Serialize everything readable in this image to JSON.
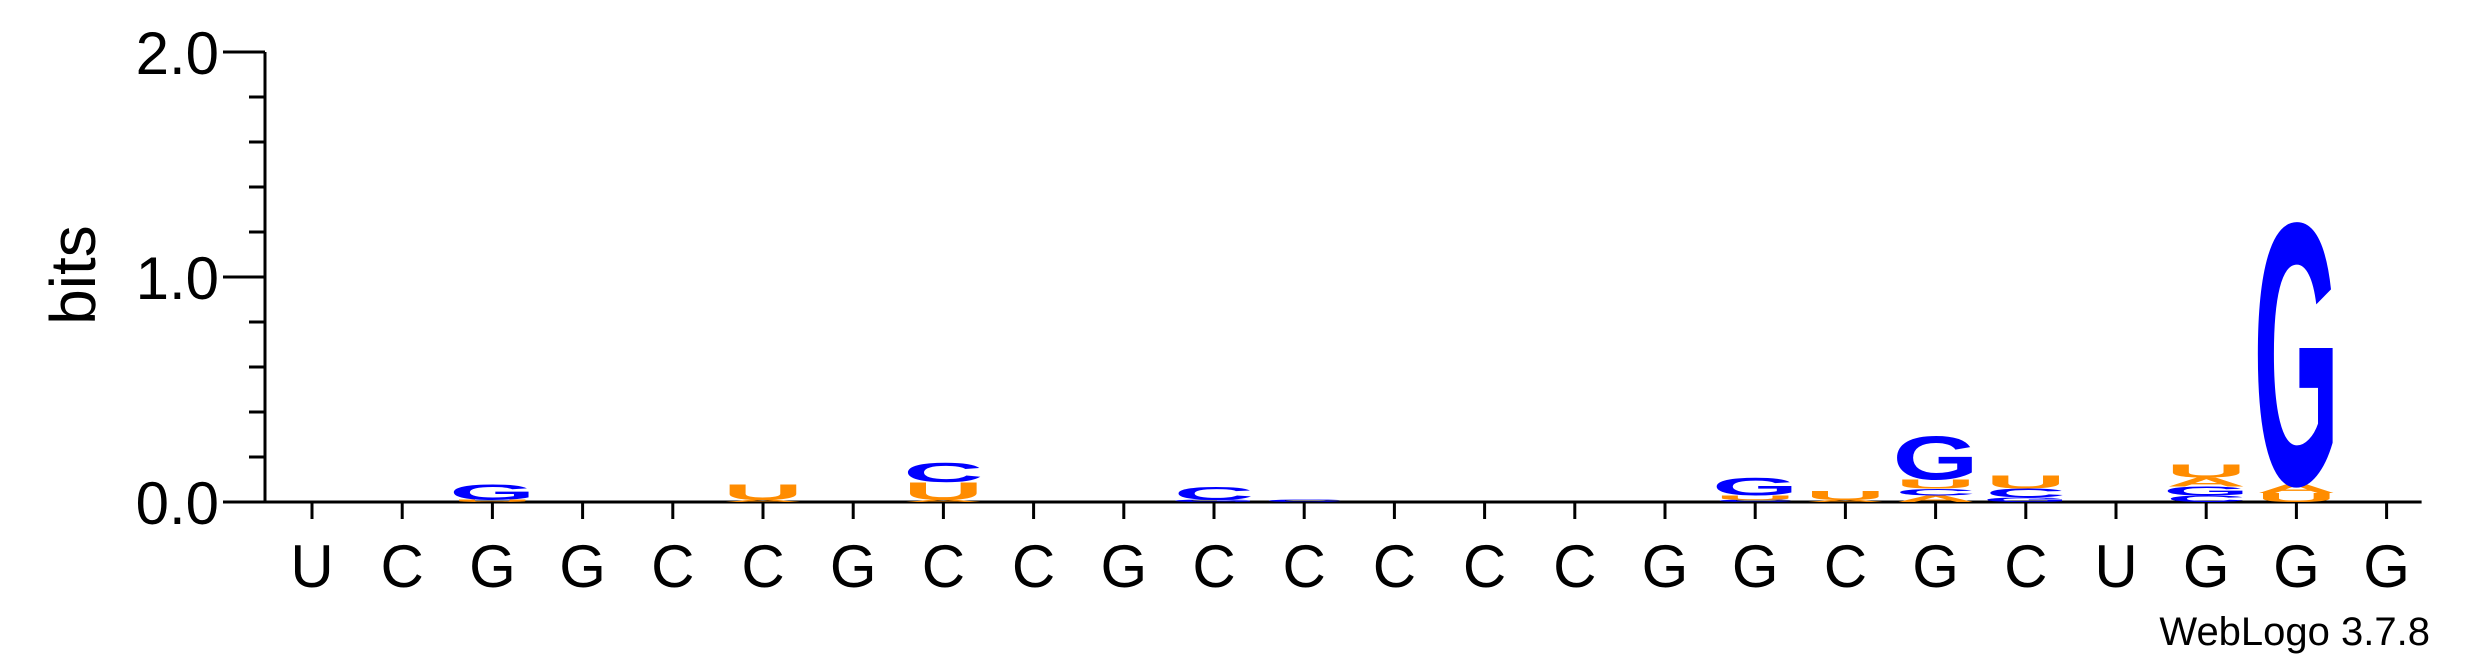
{
  "chart_data": {
    "type": "sequence-logo",
    "ylabel": "bits",
    "ylim": [
      0,
      2.0
    ],
    "y_ticks": [
      "0.0",
      "1.0",
      "2.0"
    ],
    "positions": [
      "U",
      "C",
      "G",
      "G",
      "C",
      "C",
      "G",
      "C",
      "C",
      "G",
      "C",
      "C",
      "C",
      "C",
      "C",
      "G",
      "G",
      "C",
      "G",
      "C",
      "U",
      "G",
      "G",
      "G"
    ],
    "colors": {
      "G": "#0000ff",
      "C": "#0000ff",
      "U": "#ff8c00",
      "A": "#ff8c00"
    },
    "stacks": [
      [],
      [],
      [
        {
          "letter": "G",
          "bits": 0.07
        },
        {
          "letter": "U",
          "bits": 0.01
        }
      ],
      [],
      [],
      [
        {
          "letter": "U",
          "bits": 0.07
        },
        {
          "letter": "A",
          "bits": 0.01
        }
      ],
      [],
      [
        {
          "letter": "C",
          "bits": 0.09
        },
        {
          "letter": "U",
          "bits": 0.08
        },
        {
          "letter": "A",
          "bits": 0.01
        }
      ],
      [],
      [],
      [
        {
          "letter": "C",
          "bits": 0.06
        },
        {
          "letter": "G",
          "bits": 0.01
        }
      ],
      [
        {
          "letter": "C",
          "bits": 0.01
        }
      ],
      [],
      [],
      [],
      [],
      [
        {
          "letter": "G",
          "bits": 0.08
        },
        {
          "letter": "U",
          "bits": 0.02
        },
        {
          "letter": "C",
          "bits": 0.01
        }
      ],
      [
        {
          "letter": "U",
          "bits": 0.04
        },
        {
          "letter": "A",
          "bits": 0.01
        }
      ],
      [
        {
          "letter": "G",
          "bits": 0.2
        },
        {
          "letter": "U",
          "bits": 0.04
        },
        {
          "letter": "A",
          "bits": 0.03
        },
        {
          "letter": "C",
          "bits": 0.03
        }
      ],
      [
        {
          "letter": "U",
          "bits": 0.06
        },
        {
          "letter": "C",
          "bits": 0.04
        },
        {
          "letter": "G",
          "bits": 0.02
        }
      ],
      [],
      [
        {
          "letter": "U",
          "bits": 0.06
        },
        {
          "letter": "G",
          "bits": 0.04
        },
        {
          "letter": "C",
          "bits": 0.03
        },
        {
          "letter": "A",
          "bits": 0.04
        }
      ],
      [
        {
          "letter": "G",
          "bits": 1.2
        },
        {
          "letter": "U",
          "bits": 0.04
        },
        {
          "letter": "A",
          "bits": 0.04
        }
      ],
      []
    ]
  },
  "credit": "WebLogo 3.7.8"
}
